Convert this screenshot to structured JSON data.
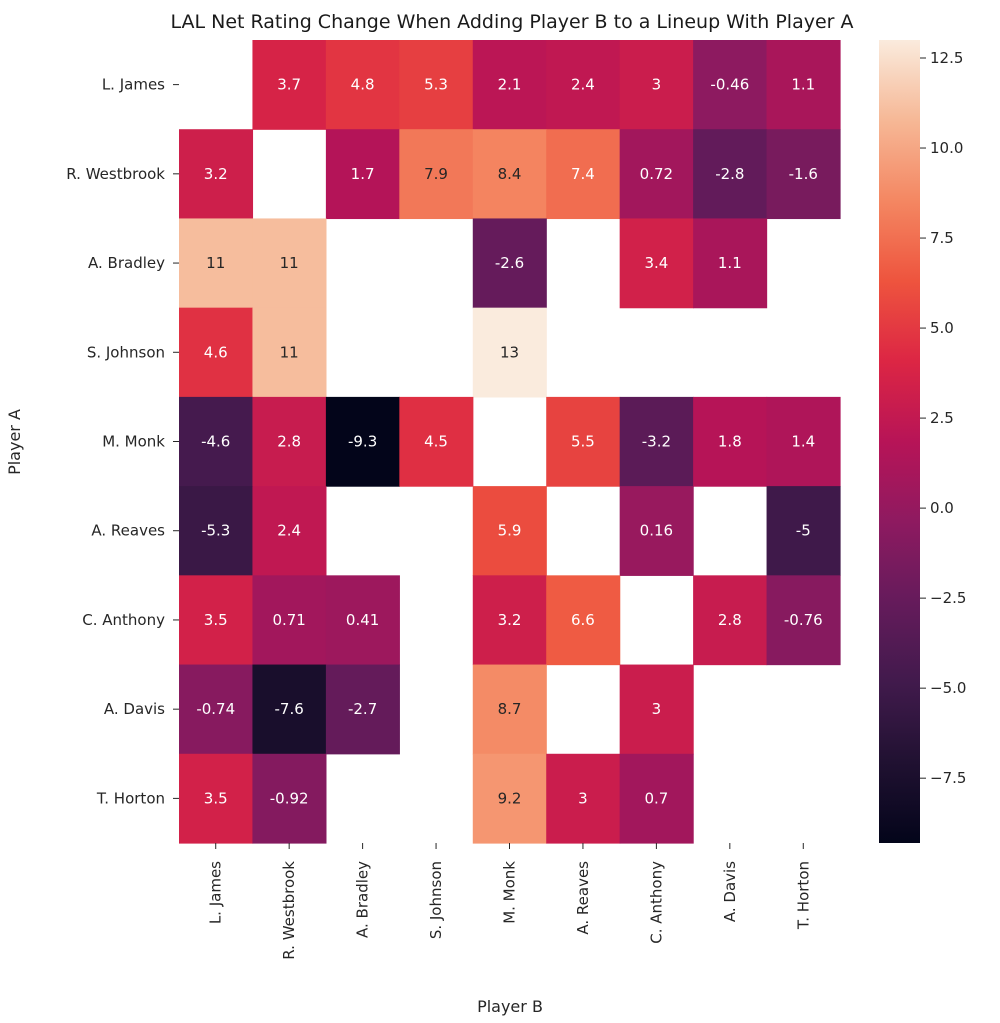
{
  "chart_data": {
    "type": "heatmap",
    "title": "LAL Net Rating Change When Adding Player B to a Lineup With Player A",
    "xlabel": "Player B",
    "ylabel": "Player A",
    "x_categories": [
      "L. James",
      "R. Westbrook",
      "A. Bradley",
      "S. Johnson",
      "M. Monk",
      "A. Reaves",
      "C. Anthony",
      "A. Davis",
      "T. Horton"
    ],
    "y_categories": [
      "L. James",
      "R. Westbrook",
      "A. Bradley",
      "S. Johnson",
      "M. Monk",
      "A. Reaves",
      "C. Anthony",
      "A. Davis",
      "T. Horton"
    ],
    "values": [
      [
        null,
        3.7,
        4.8,
        5.3,
        2.1,
        2.4,
        3,
        -0.46,
        1.1
      ],
      [
        3.2,
        null,
        1.7,
        7.9,
        8.4,
        7.4,
        0.72,
        -2.8,
        -1.6
      ],
      [
        11,
        11,
        null,
        null,
        -2.6,
        null,
        3.4,
        1.1,
        null
      ],
      [
        4.6,
        11,
        null,
        null,
        13,
        null,
        null,
        null,
        null
      ],
      [
        -4.6,
        2.8,
        -9.3,
        4.5,
        null,
        5.5,
        -3.2,
        1.8,
        1.4
      ],
      [
        -5.3,
        2.4,
        null,
        null,
        5.9,
        null,
        0.16,
        null,
        -5
      ],
      [
        3.5,
        0.71,
        0.41,
        null,
        3.2,
        6.6,
        null,
        2.8,
        -0.76
      ],
      [
        -0.74,
        -7.6,
        -2.7,
        null,
        8.7,
        null,
        3,
        null,
        null
      ],
      [
        3.5,
        -0.92,
        null,
        null,
        9.2,
        3,
        0.7,
        null,
        null
      ]
    ],
    "colormap": "rocket",
    "color_range": [
      -9.3,
      13
    ],
    "colorbar_ticks": [
      -7.5,
      -5.0,
      -2.5,
      0.0,
      2.5,
      5.0,
      7.5,
      10.0,
      12.5
    ],
    "colorbar_tick_labels": [
      "−7.5",
      "−5.0",
      "−2.5",
      "0.0",
      "2.5",
      "5.0",
      "7.5",
      "10.0",
      "12.5"
    ],
    "annotations": true,
    "grid": false,
    "legend": "colorbar-right"
  }
}
